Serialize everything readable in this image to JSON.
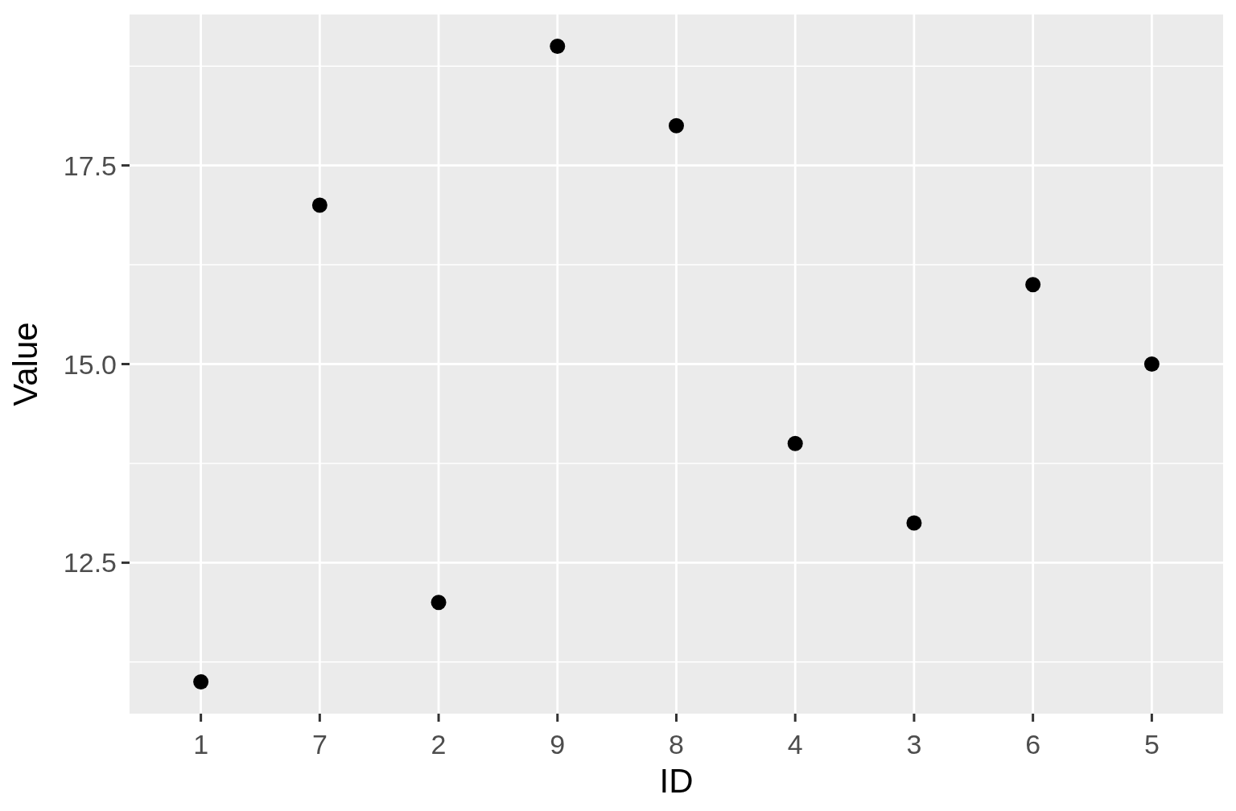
{
  "chart_data": {
    "type": "scatter",
    "xlabel": "ID",
    "ylabel": "Value",
    "categories": [
      "1",
      "7",
      "2",
      "9",
      "8",
      "4",
      "3",
      "6",
      "5"
    ],
    "values": [
      11,
      17,
      12,
      19,
      18,
      14,
      13,
      16,
      15
    ],
    "color": "#000000",
    "marker": "circle",
    "ylim": [
      10.6,
      19.4
    ],
    "yticks": [
      {
        "value": 11.25,
        "label": null
      },
      12.5,
      {
        "value": 13.75,
        "label": null
      },
      {
        "value": 15,
        "label": "15.0"
      },
      {
        "value": 16.25,
        "label": null
      },
      17.5,
      {
        "value": 18.75,
        "label": null
      }
    ],
    "grid": true
  }
}
